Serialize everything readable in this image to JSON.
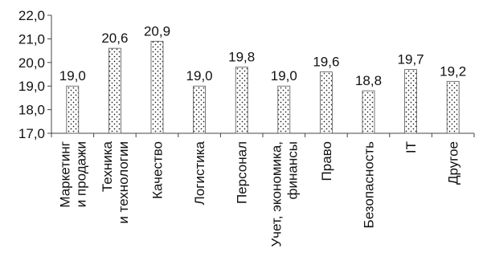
{
  "chart_data": {
    "type": "bar",
    "title": "",
    "xlabel": "",
    "ylabel": "",
    "categories": [
      [
        "Маркетинг",
        "и продажи"
      ],
      [
        "Техника",
        "и технологии"
      ],
      [
        "Качество"
      ],
      [
        "Логистика"
      ],
      [
        "Персонал"
      ],
      [
        "Учет, экономика,",
        "финансы"
      ],
      [
        "Право"
      ],
      [
        "Безопасность"
      ],
      [
        "IT"
      ],
      [
        "Другое"
      ]
    ],
    "values": [
      19.0,
      20.6,
      20.9,
      19.0,
      19.8,
      19.0,
      19.6,
      18.8,
      19.7,
      19.2
    ],
    "value_labels": [
      "19,0",
      "20,6",
      "20,9",
      "19,0",
      "19,8",
      "19,0",
      "19,6",
      "18,8",
      "19,7",
      "19,2"
    ],
    "ylim": [
      17.0,
      22.0
    ],
    "yticks": [
      17.0,
      18.0,
      19.0,
      20.0,
      21.0,
      22.0
    ],
    "ytick_labels": [
      "17,0",
      "18,0",
      "19,0",
      "20,0",
      "21,0",
      "22,0"
    ],
    "grid": false,
    "legend": "none",
    "bar_fill": "dotted",
    "colors": {
      "bar_border": "#555555",
      "dots": "#222222",
      "axis": "#444444",
      "text": "#111111"
    }
  }
}
